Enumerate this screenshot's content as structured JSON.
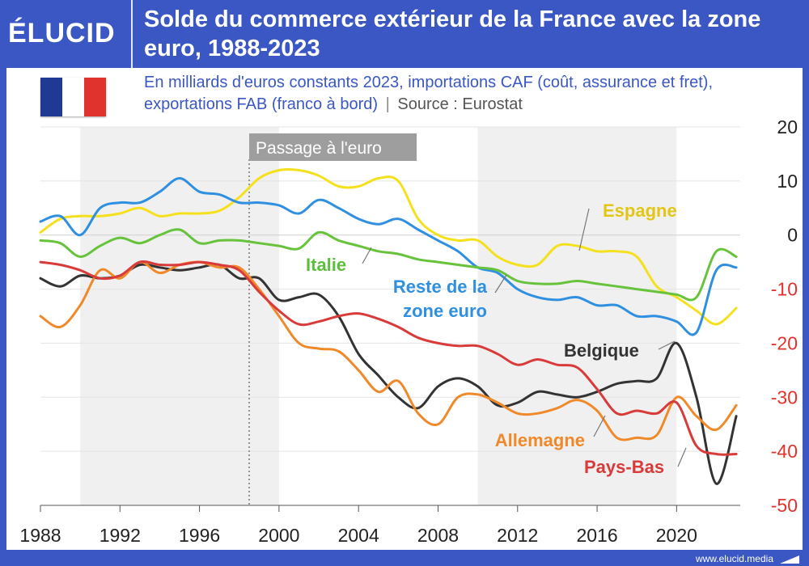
{
  "brand": {
    "logo": "ÉLUCID",
    "url": "www.elucid.media"
  },
  "title": "Solde du commerce extérieur de la France avec la zone euro, 1988-2023",
  "subtitle": "En milliards d'euros constants 2023, importations CAF (coût, assurance et fret), exportations FAB (franco à bord)",
  "source": "Source : Eurostat",
  "colors": {
    "frame": "#3a57c4",
    "negative_tick": "#e0332d",
    "flag_blue": "#1f3a93",
    "flag_white": "#ffffff",
    "flag_red": "#e0332d"
  },
  "chart_data": {
    "type": "line",
    "title": "Solde du commerce extérieur de la France avec la zone euro, 1988-2023",
    "xlabel": "",
    "ylabel": "En milliards d'euros constants 2023",
    "xlim": [
      1988,
      2023.2
    ],
    "ylim": [
      -50,
      20
    ],
    "x_ticks": [
      1988,
      1992,
      1996,
      2000,
      2004,
      2008,
      2012,
      2016,
      2020
    ],
    "y_ticks": [
      20,
      10,
      0,
      -10,
      -20,
      -30,
      -40,
      -50
    ],
    "shaded_periods": [
      [
        1990,
        2000
      ],
      [
        2010,
        2020
      ]
    ],
    "event": {
      "label": "Passage à l'euro",
      "x": 1998.5
    },
    "x": [
      1988,
      1989,
      1990,
      1991,
      1992,
      1993,
      1994,
      1995,
      1996,
      1997,
      1998,
      1999,
      2000,
      2001,
      2002,
      2003,
      2004,
      2005,
      2006,
      2007,
      2008,
      2009,
      2010,
      2011,
      2012,
      2013,
      2014,
      2015,
      2016,
      2017,
      2018,
      2019,
      2020,
      2021,
      2022,
      2023
    ],
    "series": [
      {
        "name": "Espagne",
        "color": "#f5e01e",
        "label_color": "#e3c615",
        "values": [
          0.5,
          3,
          3.5,
          3.5,
          4,
          5,
          3.5,
          4,
          4,
          4.5,
          7,
          10.5,
          12,
          12,
          11,
          9,
          9,
          10.5,
          10,
          3,
          0,
          -1,
          -1,
          -4,
          -5.5,
          -5.5,
          -2,
          -2,
          -3,
          -3,
          -4,
          -9.5,
          -11.5,
          -14,
          -16.5,
          -13.5
        ]
      },
      {
        "name": "Reste de la zone euro",
        "color": "#2f8fe0",
        "label_color": "#2f8fe0",
        "values": [
          2.5,
          3.5,
          0,
          5,
          6,
          6,
          8,
          10.5,
          8,
          7.5,
          6,
          6,
          5.5,
          4,
          6.5,
          5,
          3,
          2,
          3,
          1,
          -1,
          -3,
          -6,
          -7,
          -10,
          -11.5,
          -12,
          -11.5,
          -13,
          -13,
          -15,
          -15,
          -16,
          -18,
          -6.5,
          -6
        ]
      },
      {
        "name": "Italie",
        "color": "#68c33c",
        "label_color": "#5bbf3c",
        "values": [
          -1,
          -1.5,
          -4,
          -2,
          -0.5,
          -1.5,
          0,
          1,
          -1.5,
          -1,
          -1,
          -1.5,
          -2,
          -2.5,
          0.5,
          -1,
          -2,
          -3,
          -3.5,
          -4.5,
          -5,
          -5.5,
          -6,
          -6.5,
          -8.5,
          -9,
          -9,
          -8.5,
          -9,
          -9.5,
          -10,
          -10.5,
          -11,
          -11.5,
          -3,
          -4
        ]
      },
      {
        "name": "Belgique",
        "color": "#333333",
        "label_color": "#333333",
        "values": [
          -8,
          -9.5,
          -7.5,
          -8,
          -7.5,
          -5.5,
          -6,
          -6.5,
          -6,
          -5.5,
          -8,
          -8,
          -12,
          -11.5,
          -11,
          -15,
          -22,
          -26,
          -30,
          -32,
          -28,
          -26.5,
          -28,
          -31.5,
          -31,
          -29,
          -29.5,
          -30,
          -29,
          -27.5,
          -27,
          -26.5,
          -20,
          -30,
          -46,
          -33.5
        ]
      },
      {
        "name": "Allemagne",
        "color": "#f0892a",
        "label_color": "#f0892a",
        "values": [
          -15,
          -17,
          -13,
          -6.5,
          -8,
          -5,
          -7,
          -5.5,
          -5,
          -6,
          -6,
          -10,
          -15,
          -20,
          -21,
          -21.5,
          -25,
          -29,
          -27,
          -33,
          -35,
          -30,
          -29.5,
          -31,
          -33,
          -33,
          -32,
          -30.5,
          -32.5,
          -37.5,
          -37.5,
          -37,
          -30,
          -33.5,
          -36,
          -31.5
        ]
      },
      {
        "name": "Pays-Bas",
        "color": "#d93a3a",
        "label_color": "#d93a3a",
        "values": [
          -5,
          -5.5,
          -6.5,
          -8,
          -7.5,
          -5,
          -5.5,
          -5.5,
          -5,
          -5.5,
          -6.5,
          -10.5,
          -14,
          -16.5,
          -16,
          -15,
          -14.5,
          -15.5,
          -17,
          -19,
          -20,
          -20.5,
          -20.5,
          -22,
          -24,
          -23,
          -24,
          -24.5,
          -28.5,
          -33,
          -32.5,
          -33,
          -31,
          -39,
          -40.5,
          -40.5
        ]
      }
    ],
    "annotations": [
      {
        "series": "Espagne",
        "text": "Espagne"
      },
      {
        "series": "Italie",
        "text": "Italie"
      },
      {
        "series": "Reste de la zone euro",
        "text": "Reste de la zone euro"
      },
      {
        "series": "Belgique",
        "text": "Belgique"
      },
      {
        "series": "Allemagne",
        "text": "Allemagne"
      },
      {
        "series": "Pays-Bas",
        "text": "Pays-Bas"
      }
    ]
  }
}
